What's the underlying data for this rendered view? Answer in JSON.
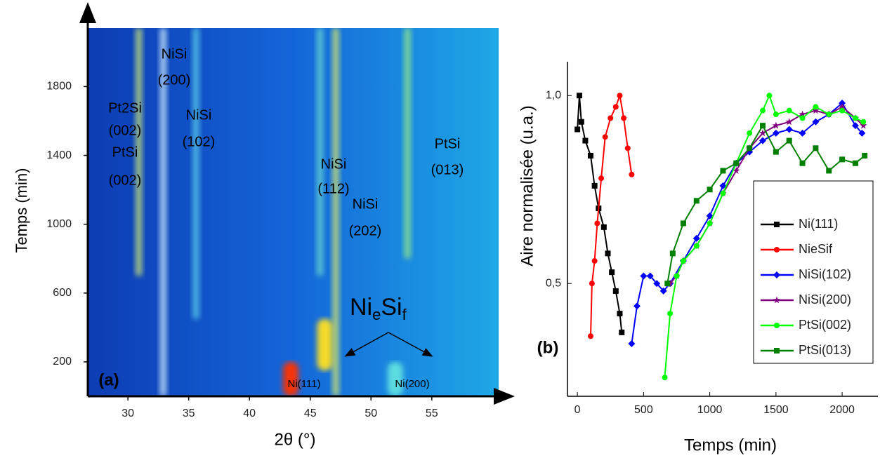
{
  "chart_data": [
    {
      "type": "heatmap",
      "x_label": "2θ (°)",
      "y_label": "Temps (min)",
      "xlim": [
        26.7,
        60.5
      ],
      "ylim": [
        0,
        2140
      ],
      "xticks": [
        30,
        35,
        40,
        45,
        50,
        55
      ],
      "yticks": [
        200,
        600,
        1000,
        1400,
        1800
      ],
      "peaks": [
        {
          "two_theta": 30.9,
          "from": 700,
          "to": 2140,
          "color": "#d8f070"
        },
        {
          "two_theta": 32.9,
          "from": 0,
          "to": 2140,
          "color": "#e0f8ff"
        },
        {
          "two_theta": 35.6,
          "from": 450,
          "to": 2140,
          "color": "#60d8e8"
        },
        {
          "two_theta": 45.8,
          "from": 700,
          "to": 2140,
          "color": "#70e0d0"
        },
        {
          "two_theta": 47.1,
          "from": 0,
          "to": 2140,
          "color": "#e8f060"
        },
        {
          "two_theta": 53.0,
          "from": 800,
          "to": 2140,
          "color": "#a0f080"
        },
        {
          "two_theta": 43.4,
          "from": 0,
          "to": 200,
          "color": "#ff3000"
        },
        {
          "two_theta": 46.2,
          "from": 150,
          "to": 450,
          "color": "#ffe020"
        },
        {
          "two_theta": 52.0,
          "from": 0,
          "to": 200,
          "color": "#60e0e0"
        }
      ],
      "annotations": [
        [
          "NiSi",
          "(200)"
        ],
        [
          "Pt2Si",
          "(002)",
          "PtSi",
          "(002)"
        ],
        [
          "NiSi",
          "(102)"
        ],
        [
          "NiSi",
          "(112)"
        ],
        [
          "NiSi",
          "(202)"
        ],
        [
          "PtSi",
          "(013)"
        ],
        [
          "Ni(111)"
        ],
        [
          "Ni(200)"
        ],
        [
          "(a)"
        ]
      ],
      "phase_label": [
        "Ni",
        "e",
        "Si",
        "f"
      ]
    },
    {
      "type": "line",
      "x_label": "Temps (min)",
      "y_label": "Aire normalisée (u.a.)",
      "panel_label": "(b)",
      "xlim": [
        -75,
        2270
      ],
      "ylim": [
        0.2,
        1.09
      ],
      "xticks": [
        0,
        500,
        1000,
        1500,
        2000
      ],
      "yticks": [
        {
          "value": 0.5,
          "label": "0,5"
        },
        {
          "value": 1,
          "label": "1,0"
        }
      ],
      "legend": "right",
      "series": [
        {
          "name": "Ni(111)",
          "color": "#000000",
          "marker": "square",
          "x": [
            0,
            15,
            30,
            60,
            100,
            130,
            160,
            200,
            230,
            260,
            290,
            320,
            335
          ],
          "values": [
            0.91,
            1.0,
            0.93,
            0.88,
            0.84,
            0.76,
            0.7,
            0.65,
            0.58,
            0.53,
            0.48,
            0.42,
            0.37
          ]
        },
        {
          "name": "NieSif",
          "color": "#ff0000",
          "marker": "circle",
          "x": [
            100,
            110,
            130,
            150,
            180,
            210,
            250,
            290,
            320,
            350,
            380,
            410
          ],
          "values": [
            0.36,
            0.5,
            0.56,
            0.66,
            0.78,
            0.89,
            0.94,
            0.97,
            1.0,
            0.94,
            0.86,
            0.79
          ]
        },
        {
          "name": "NiSi(102)",
          "color": "#0000ff",
          "marker": "diamond",
          "x": [
            410,
            450,
            500,
            550,
            600,
            650,
            700,
            800,
            900,
            1000,
            1100,
            1200,
            1300,
            1400,
            1500,
            1600,
            1700,
            1800,
            1900,
            2000,
            2100,
            2150
          ],
          "values": [
            0.34,
            0.44,
            0.52,
            0.52,
            0.5,
            0.48,
            0.5,
            0.56,
            0.62,
            0.68,
            0.76,
            0.82,
            0.85,
            0.88,
            0.9,
            0.91,
            0.9,
            0.93,
            0.95,
            0.98,
            0.92,
            0.9
          ]
        },
        {
          "name": "NiSi(200)",
          "color": "#800080",
          "marker": "star",
          "x": [
            700,
            750,
            800,
            900,
            1000,
            1100,
            1200,
            1300,
            1400,
            1500,
            1600,
            1700,
            1800,
            1900,
            2000,
            2100,
            2160
          ],
          "values": [
            0.5,
            0.52,
            0.56,
            0.6,
            0.66,
            0.74,
            0.8,
            0.86,
            0.9,
            0.92,
            0.93,
            0.95,
            0.96,
            0.95,
            0.97,
            0.94,
            0.92
          ]
        },
        {
          "name": "PtSi(002)",
          "color": "#00ff00",
          "marker": "circle",
          "x": [
            660,
            700,
            750,
            800,
            900,
            1000,
            1100,
            1200,
            1300,
            1400,
            1450,
            1500,
            1600,
            1700,
            1800,
            1900,
            2000,
            2100,
            2160
          ],
          "values": [
            0.25,
            0.42,
            0.52,
            0.56,
            0.6,
            0.66,
            0.74,
            0.82,
            0.9,
            0.96,
            1.0,
            0.95,
            0.96,
            0.94,
            0.97,
            0.95,
            0.96,
            0.94,
            0.93
          ]
        },
        {
          "name": "PtSi(013)",
          "color": "#008000",
          "marker": "square",
          "x": [
            680,
            720,
            800,
            900,
            1000,
            1100,
            1200,
            1300,
            1400,
            1500,
            1600,
            1700,
            1800,
            1900,
            2000,
            2100,
            2170
          ],
          "values": [
            0.5,
            0.58,
            0.66,
            0.72,
            0.75,
            0.8,
            0.82,
            0.86,
            0.92,
            0.85,
            0.88,
            0.82,
            0.86,
            0.8,
            0.83,
            0.82,
            0.84
          ]
        }
      ]
    }
  ]
}
